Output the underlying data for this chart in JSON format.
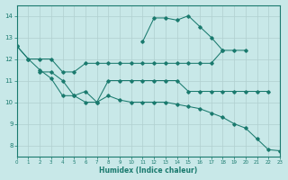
{
  "xlabel": "Humidex (Indice chaleur)",
  "xlim": [
    0,
    23
  ],
  "ylim": [
    7.5,
    14.5
  ],
  "yticks": [
    8,
    9,
    10,
    11,
    12,
    13,
    14
  ],
  "xticks": [
    0,
    1,
    2,
    3,
    4,
    5,
    6,
    7,
    8,
    9,
    10,
    11,
    12,
    13,
    14,
    15,
    16,
    17,
    18,
    19,
    20,
    21,
    22,
    23
  ],
  "bg": "#c8e8e8",
  "grid_color": "#b0cfcf",
  "lc": "#1a7a6e",
  "lines": [
    {
      "x": [
        0,
        1,
        2,
        3,
        4,
        5,
        6,
        7,
        8,
        9,
        10,
        11,
        12,
        13,
        14,
        15,
        16,
        17,
        18,
        19,
        20,
        21,
        22,
        23
      ],
      "y": [
        12.6,
        12.0,
        11.5,
        11.1,
        10.3,
        10.3,
        10.0,
        10.0,
        10.3,
        10.1,
        10.0,
        10.0,
        10.0,
        10.0,
        9.9,
        9.8,
        9.7,
        9.5,
        9.3,
        9.0,
        8.8,
        8.3,
        7.8,
        7.75
      ]
    },
    {
      "x": [
        0,
        1,
        2,
        3,
        4,
        5,
        6,
        7,
        8,
        9,
        10,
        11,
        12,
        13,
        14,
        15,
        16,
        17,
        18,
        19,
        20
      ],
      "y": [
        12.6,
        12.0,
        12.0,
        12.0,
        11.4,
        11.4,
        11.8,
        11.8,
        11.8,
        11.8,
        11.8,
        11.8,
        11.8,
        11.8,
        11.8,
        11.8,
        11.8,
        11.8,
        12.4,
        12.4,
        12.4
      ]
    },
    {
      "x": [
        2,
        3,
        4,
        5,
        6,
        7,
        8,
        9,
        10,
        11,
        12,
        13,
        14,
        15,
        16,
        17,
        18,
        19,
        20,
        21,
        22
      ],
      "y": [
        11.4,
        11.4,
        11.0,
        10.3,
        10.5,
        10.0,
        11.0,
        11.0,
        11.0,
        11.0,
        11.0,
        11.0,
        11.0,
        10.5,
        10.5,
        10.5,
        10.5,
        10.5,
        10.5,
        10.5,
        10.5
      ]
    },
    {
      "x": [
        11,
        12,
        13,
        14,
        15,
        16,
        17,
        18
      ],
      "y": [
        12.8,
        13.9,
        13.9,
        13.8,
        14.0,
        13.5,
        13.0,
        12.4
      ]
    }
  ],
  "figsize": [
    3.2,
    2.0
  ],
  "dpi": 100
}
